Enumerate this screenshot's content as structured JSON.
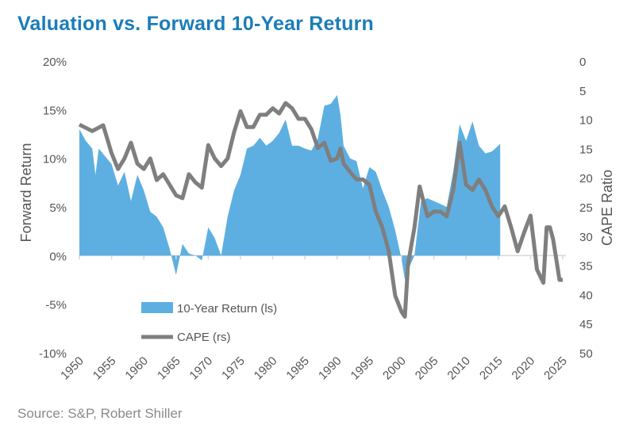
{
  "chart_data": {
    "type": "area+line",
    "title": "Valuation vs. Forward 10-Year Return",
    "source": "Source: S&P, Robert Shiller",
    "ylabel_left": "Forward Return",
    "ylabel_right": "CAPE Ratio",
    "ylim_left": [
      -10,
      20
    ],
    "ylim_right": [
      0,
      50
    ],
    "right_axis_inverted": true,
    "xlim": [
      1950,
      2025
    ],
    "x_ticks": [
      "1950",
      "1955",
      "1960",
      "1965",
      "1970",
      "1975",
      "1980",
      "1985",
      "1990",
      "1995",
      "2000",
      "2005",
      "2010",
      "2015",
      "2020",
      "2025"
    ],
    "left_ticks": [
      "20%",
      "15%",
      "10%",
      "5%",
      "0%",
      "-5%",
      "-10%"
    ],
    "right_ticks": [
      "0",
      "5",
      "10",
      "15",
      "20",
      "25",
      "30",
      "35",
      "40",
      "45",
      "50"
    ],
    "legend": {
      "placement": "bottom-left",
      "entries": [
        "10-Year Return (ls)",
        "CAPE (rs)"
      ]
    },
    "colors": {
      "return": "#5dafe2",
      "cape": "#7f7f7f",
      "title": "#1b7db8"
    },
    "series": [
      {
        "name": "10-Year Return (ls)",
        "type": "area",
        "x": [
          1950,
          1951,
          1952,
          1952.5,
          1953,
          1955,
          1956,
          1957,
          1958,
          1959,
          1960,
          1961,
          1962,
          1963,
          1964,
          1965,
          1966,
          1967,
          1968,
          1969,
          1970,
          1971,
          1972,
          1973,
          1974,
          1975,
          1976,
          1977,
          1978,
          1979,
          1980,
          1981,
          1982,
          1983,
          1984,
          1985,
          1986,
          1987,
          1988,
          1989,
          1990,
          1990.5,
          1991,
          1992,
          1993,
          1994,
          1995,
          1996,
          1997,
          1998,
          1999,
          2000,
          2000.5,
          2001,
          2002,
          2003,
          2004,
          2005,
          2006,
          2007,
          2008,
          2009,
          2010,
          2011,
          2012,
          2013,
          2014,
          2015,
          2015.3
        ],
        "values": [
          13,
          11.8,
          11,
          8.3,
          11,
          9.4,
          7.2,
          8.6,
          5.6,
          8.3,
          6.7,
          4.5,
          4,
          2.9,
          0.7,
          -2,
          1.2,
          0.2,
          0,
          -0.5,
          2.9,
          1.8,
          0,
          4,
          6.7,
          8.3,
          11,
          11.3,
          12.1,
          11.3,
          11.8,
          12.6,
          14,
          11.3,
          11.3,
          11,
          10.8,
          12,
          15.4,
          15.6,
          16.5,
          14.5,
          11.3,
          10,
          9.7,
          6.9,
          9.1,
          8.6,
          6.7,
          5,
          2.6,
          -0.4,
          -2.5,
          -1.5,
          0,
          5.6,
          5.9,
          5.6,
          5.3,
          5,
          8.6,
          13.5,
          11.8,
          13.8,
          11.3,
          10.5,
          10.7,
          11.3,
          11.5
        ]
      },
      {
        "name": "CAPE (rs)",
        "type": "line",
        "x": [
          1950,
          1952,
          1953.7,
          1955,
          1956,
          1957,
          1958,
          1959,
          1960,
          1961,
          1962,
          1963,
          1964,
          1965,
          1966,
          1967,
          1968,
          1969,
          1970,
          1971,
          1972,
          1973,
          1974,
          1975,
          1976,
          1977,
          1978,
          1979,
          1980,
          1981,
          1982,
          1983,
          1984,
          1985,
          1986,
          1987,
          1988,
          1989,
          1990,
          1990.5,
          1991,
          1992,
          1993,
          1994,
          1995,
          1996,
          1997,
          1998,
          1999,
          2000,
          2000.5,
          2001,
          2002,
          2002.8,
          2004,
          2005,
          2006,
          2007,
          2008,
          2009,
          2010,
          2011,
          2012,
          2013,
          2014,
          2015,
          2016,
          2017,
          2018,
          2019,
          2020,
          2020.5,
          2021,
          2022,
          2022.5,
          2023,
          2023.5,
          2024,
          2024.5,
          2025
        ],
        "values": [
          10.9,
          12,
          11,
          15.8,
          18.5,
          16.7,
          14,
          17.6,
          18.5,
          16.7,
          20.4,
          19.4,
          21.2,
          23,
          23.5,
          19.4,
          20.8,
          21.7,
          14.4,
          16.7,
          18,
          16.7,
          12.2,
          8.6,
          11.3,
          11.3,
          9.2,
          9.2,
          8.1,
          9,
          7.2,
          8.1,
          9.9,
          9.9,
          11.7,
          14.9,
          14,
          17.1,
          16.7,
          15,
          17.6,
          19,
          20.3,
          20.3,
          21.2,
          25.8,
          28.5,
          32.6,
          40.2,
          43,
          43.8,
          34.8,
          28.5,
          21.5,
          26.6,
          25.8,
          25.8,
          26.6,
          22.1,
          14,
          21.2,
          22.1,
          20.3,
          22.1,
          24.9,
          26.6,
          24.9,
          28.5,
          32.6,
          29.4,
          26.5,
          31,
          35.7,
          38,
          28.5,
          28.5,
          30.5,
          34,
          37.5,
          37.5
        ]
      }
    ]
  }
}
